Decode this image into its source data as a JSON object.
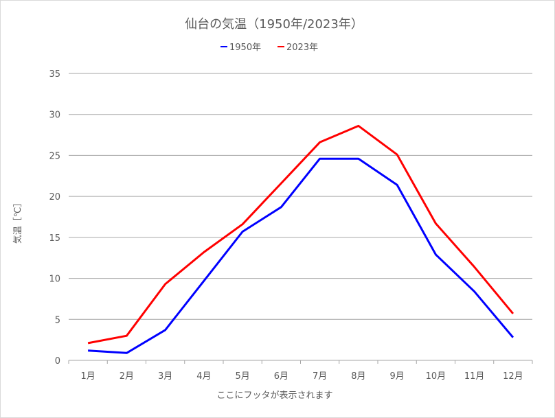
{
  "chart_data": {
    "type": "line",
    "title": "仙台の気温（1950年/2023年）",
    "xlabel": "ここにフッタが表示されます",
    "ylabel": "気温［℃］",
    "categories": [
      "1月",
      "2月",
      "3月",
      "4月",
      "5月",
      "6月",
      "7月",
      "8月",
      "9月",
      "10月",
      "11月",
      "12月"
    ],
    "ylim": [
      0,
      35
    ],
    "yticks": [
      0,
      5,
      10,
      15,
      20,
      25,
      30,
      35
    ],
    "grid": true,
    "legend_position": "top",
    "series": [
      {
        "name": "1950年",
        "color": "#0000ff",
        "values": [
          1.2,
          0.9,
          3.7,
          9.7,
          15.7,
          18.7,
          24.6,
          24.6,
          21.4,
          12.9,
          8.4,
          2.8
        ]
      },
      {
        "name": "2023年",
        "color": "#ff0000",
        "values": [
          2.1,
          3.0,
          9.3,
          13.2,
          16.6,
          21.6,
          26.6,
          28.6,
          25.1,
          16.7,
          11.4,
          5.7
        ]
      }
    ]
  }
}
